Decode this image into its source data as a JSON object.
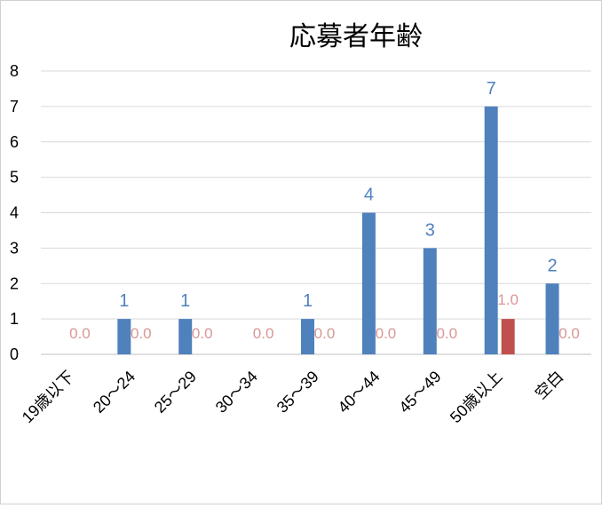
{
  "chart_data": {
    "type": "bar",
    "title": "応募者年齢",
    "categories": [
      "19歳以下",
      "20～24",
      "25～29",
      "30～34",
      "35～39",
      "40～44",
      "45～49",
      "50歳以上",
      "空白"
    ],
    "series": [
      {
        "values": [
          0,
          1,
          1,
          0,
          1,
          4,
          3,
          7,
          2
        ],
        "labels": [
          "",
          "1",
          "1",
          "",
          "1",
          "4",
          "3",
          "7",
          "2"
        ],
        "color": "#4f81bd",
        "label_color": "#4f81bd"
      },
      {
        "values": [
          0,
          0,
          0,
          0,
          0,
          0,
          0,
          1,
          0
        ],
        "labels": [
          "0.0",
          "0.0",
          "0.0",
          "0.0",
          "0.0",
          "0.0",
          "0.0",
          "1.0",
          "0.0"
        ],
        "color": "#c0504d",
        "label_color": "#d99694"
      }
    ],
    "ylim": [
      0,
      8
    ],
    "yticks": [
      "0",
      "1",
      "2",
      "3",
      "4",
      "5",
      "6",
      "7",
      "8"
    ],
    "grid": true,
    "legend": "none"
  }
}
